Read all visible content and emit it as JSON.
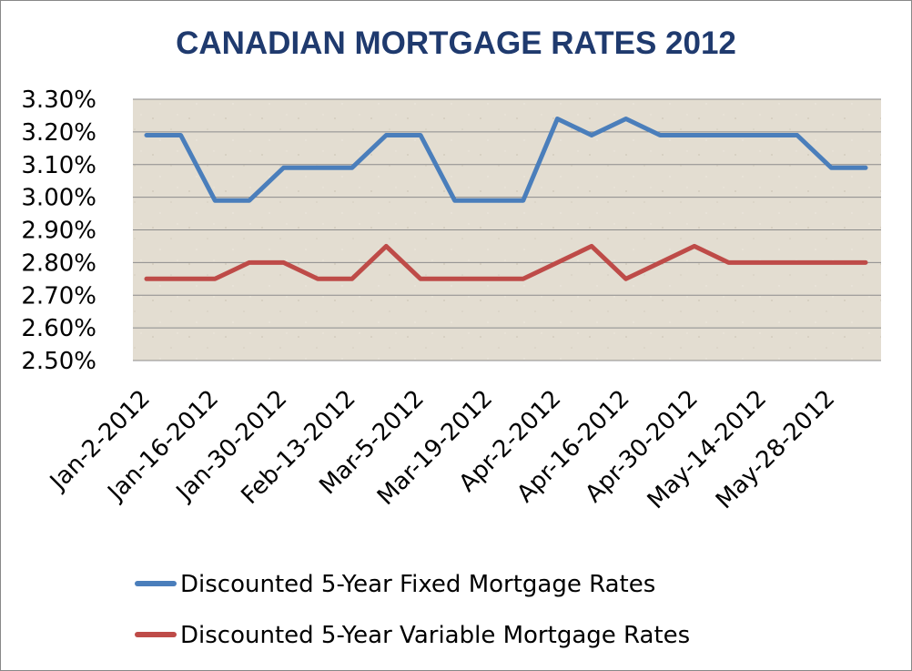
{
  "chart_data": {
    "type": "line",
    "title": "CANADIAN MORTGAGE RATES 2012",
    "xlabel": "",
    "ylabel": "",
    "ylim": [
      2.5,
      3.3
    ],
    "y_ticks": [
      "2.50%",
      "2.60%",
      "2.70%",
      "2.80%",
      "2.90%",
      "3.00%",
      "3.10%",
      "3.20%",
      "3.30%"
    ],
    "x_tick_labels": [
      "Jan-2-2012",
      "Jan-16-2012",
      "Jan-30-2012",
      "Feb-13-2012",
      "Mar-5-2012",
      "Mar-19-2012",
      "Apr-2-2012",
      "Apr-16-2012",
      "Apr-30-2012",
      "May-14-2012",
      "May-28-2012"
    ],
    "grid": true,
    "legend_position": "bottom",
    "series": [
      {
        "name": "Discounted 5-Year Fixed Mortgage Rates",
        "color": "#4a7ebb",
        "values": [
          3.19,
          3.19,
          2.99,
          2.99,
          3.09,
          3.09,
          3.09,
          3.19,
          3.19,
          2.99,
          2.99,
          2.99,
          3.24,
          3.19,
          3.24,
          3.19,
          3.19,
          3.19,
          3.19,
          3.19,
          3.09,
          3.09
        ]
      },
      {
        "name": "Discounted 5-Year Variable Mortgage Rates",
        "color": "#be4b48",
        "values": [
          2.75,
          2.75,
          2.75,
          2.8,
          2.8,
          2.75,
          2.75,
          2.85,
          2.75,
          2.75,
          2.75,
          2.75,
          2.8,
          2.85,
          2.75,
          2.8,
          2.85,
          2.8,
          2.8,
          2.8,
          2.8,
          2.8
        ]
      }
    ]
  },
  "colors": {
    "plot_background": "#e3ddd1",
    "gridline": "#8c8c8c",
    "title": "#1f3a6e"
  }
}
